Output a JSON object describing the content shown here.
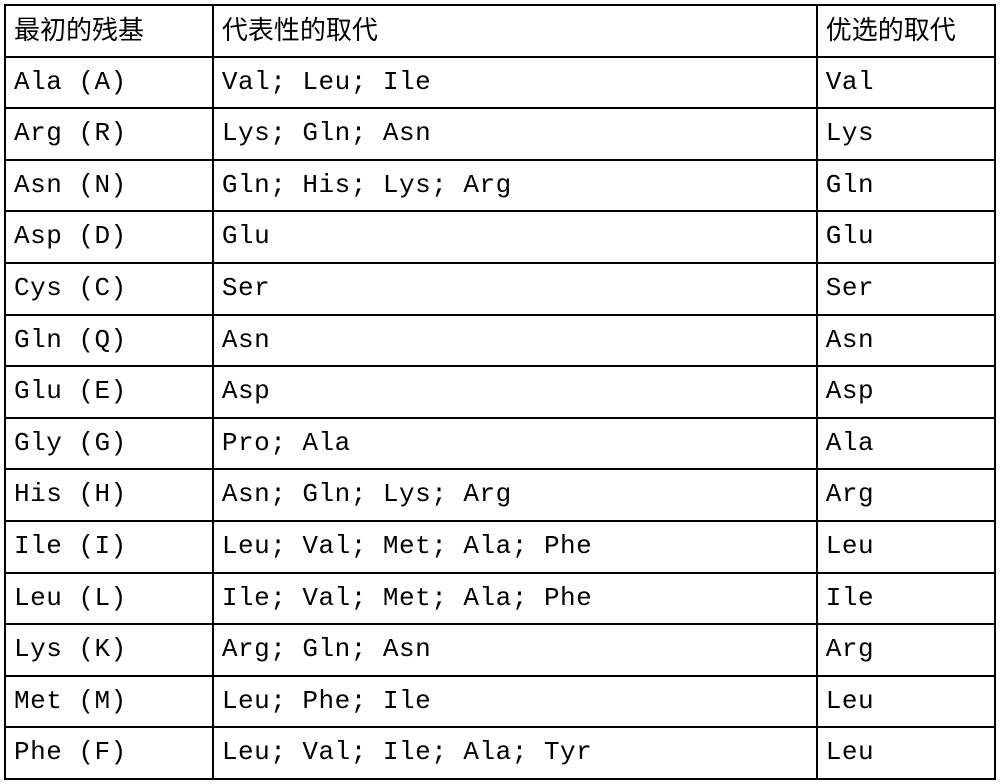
{
  "table": {
    "type": "table",
    "background_color": "#ffffff",
    "border_color": "#000000",
    "border_width": 2,
    "font_size": 26,
    "columns": [
      {
        "key": "residue",
        "header": "最初的残基",
        "width_pct": 21
      },
      {
        "key": "representative",
        "header": "代表性的取代",
        "width_pct": 61
      },
      {
        "key": "preferred",
        "header": "优选的取代",
        "width_pct": 18
      }
    ],
    "rows": [
      {
        "residue": "Ala (A)",
        "representative": "Val; Leu; Ile",
        "preferred": "Val"
      },
      {
        "residue": "Arg (R)",
        "representative": "Lys; Gln; Asn",
        "preferred": "Lys"
      },
      {
        "residue": "Asn (N)",
        "representative": "Gln; His; Lys; Arg",
        "preferred": "Gln"
      },
      {
        "residue": "Asp (D)",
        "representative": "Glu",
        "preferred": "Glu"
      },
      {
        "residue": "Cys (C)",
        "representative": "Ser",
        "preferred": "Ser"
      },
      {
        "residue": "Gln (Q)",
        "representative": "Asn",
        "preferred": "Asn"
      },
      {
        "residue": "Glu (E)",
        "representative": "Asp",
        "preferred": "Asp"
      },
      {
        "residue": "Gly (G)",
        "representative": "Pro; Ala",
        "preferred": "Ala"
      },
      {
        "residue": "His (H)",
        "representative": "Asn; Gln; Lys; Arg",
        "preferred": "Arg"
      },
      {
        "residue": "Ile (I)",
        "representative": "Leu; Val; Met; Ala; Phe",
        "preferred": "Leu"
      },
      {
        "residue": "Leu (L)",
        "representative": "Ile; Val; Met; Ala; Phe",
        "preferred": "Ile"
      },
      {
        "residue": "Lys (K)",
        "representative": "Arg; Gln; Asn",
        "preferred": "Arg"
      },
      {
        "residue": "Met (M)",
        "representative": "Leu; Phe; Ile",
        "preferred": "Leu"
      },
      {
        "residue": "Phe (F)",
        "representative": "Leu; Val; Ile; Ala; Tyr",
        "preferred": "Leu"
      }
    ]
  }
}
